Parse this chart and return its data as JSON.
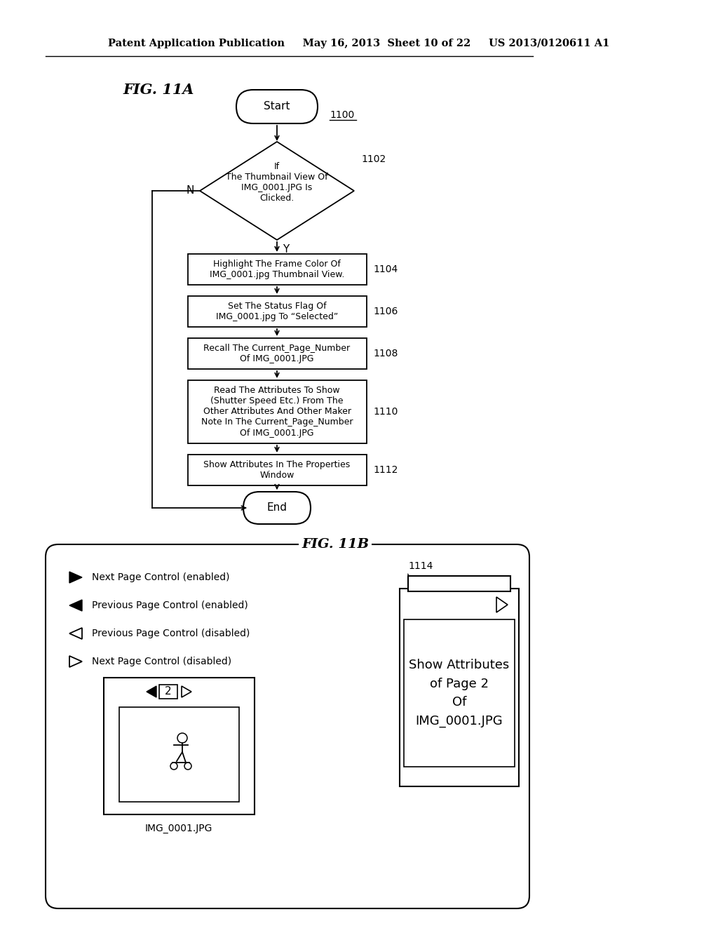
{
  "header_text": "Patent Application Publication     May 16, 2013  Sheet 10 of 22     US 2013/0120611 A1",
  "fig_11a_label": "FIG. 11A",
  "fig_11b_label": "FIG. 11B",
  "start_label": "Start",
  "end_label": "End",
  "node_1100": "1100",
  "node_1102": "1102",
  "node_1104": "1104",
  "node_1106": "1106",
  "node_1108": "1108",
  "node_1110": "1110",
  "node_1112": "1112",
  "node_1114": "1114",
  "diamond_text": "If\nThe Thumbnail View Of\nIMG_0001.JPG Is\nClicked.",
  "box_1104_text": "Highlight The Frame Color Of\nIMG_0001.jpg Thumbnail View.",
  "box_1106_text": "Set The Status Flag Of\nIMG_0001.jpg To “Selected”",
  "box_1108_text": "Recall The Current_Page_Number\nOf IMG_0001.JPG",
  "box_1110_text": "Read The Attributes To Show\n(Shutter Speed Etc.) From The\nOther Attributes And Other Maker\nNote In The Current_Page_Number\nOf IMG_0001.JPG",
  "box_1112_text": "Show Attributes In The Properties\nWindow",
  "legend_items": [
    [
      "filled_right",
      "Next Page Control (enabled)"
    ],
    [
      "filled_left",
      "Previous Page Control (enabled)"
    ],
    [
      "outline_left",
      "Previous Page Control (disabled)"
    ],
    [
      "outline_right",
      "Next Page Control (disabled)"
    ]
  ],
  "panel_text": "Show Attributes\nof Page 2\nOf\nIMG_0001.JPG",
  "img_label": "IMG_0001.JPG",
  "page_num": "2"
}
